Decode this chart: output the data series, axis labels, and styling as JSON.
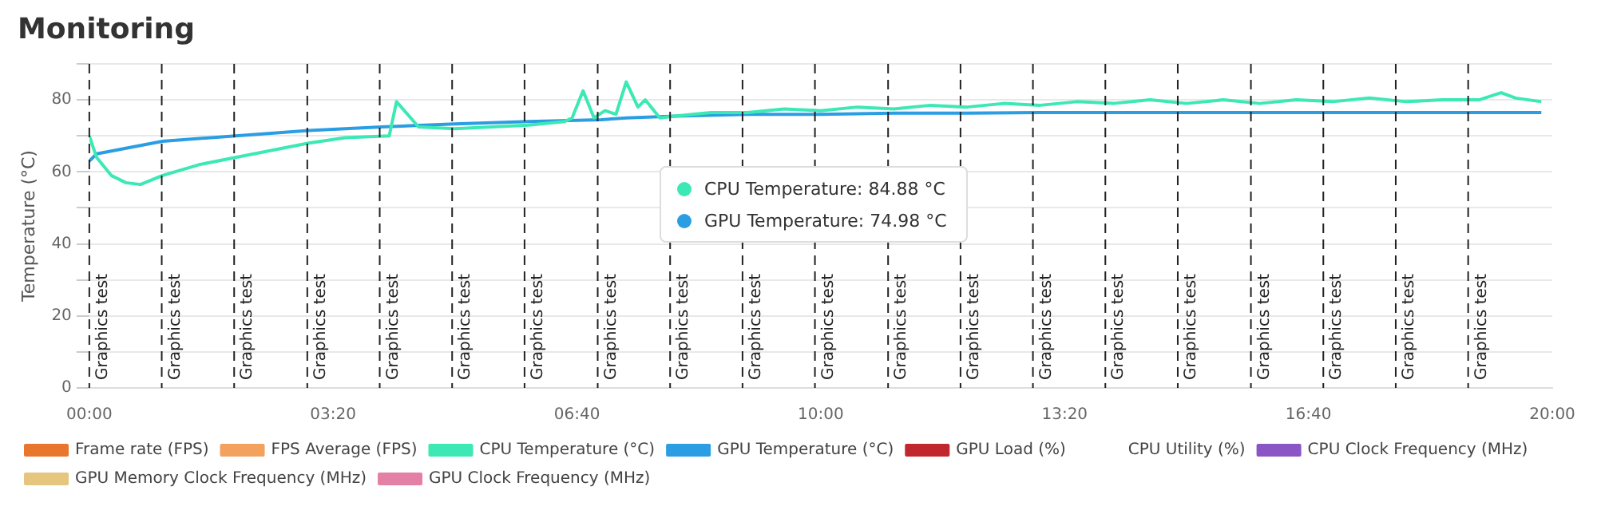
{
  "chart_data": {
    "type": "line",
    "title": "Monitoring",
    "ylabel": "Temperature (°C)",
    "legend": "bottom",
    "grid": "y",
    "marker": "none",
    "line_style": "solid",
    "xlim": [
      0,
      20
    ],
    "xticks": [
      {
        "value": 0,
        "label": "00:00"
      },
      {
        "value": 3.333,
        "label": "03:20"
      },
      {
        "value": 6.667,
        "label": "06:40"
      },
      {
        "value": 10,
        "label": "10:00"
      },
      {
        "value": 13.333,
        "label": "13:20"
      },
      {
        "value": 16.667,
        "label": "16:40"
      },
      {
        "value": 20,
        "label": "20:00"
      }
    ],
    "ylim": [
      0,
      90
    ],
    "yticks": [
      0,
      {
        "value": 10,
        "label": null
      },
      20,
      {
        "value": 30,
        "label": null
      },
      40,
      {
        "value": 50,
        "label": null
      },
      60,
      {
        "value": 70,
        "label": null
      },
      80,
      {
        "value": 90,
        "label": null
      }
    ],
    "series": [
      {
        "name": "Frame rate (FPS)",
        "color": "#e8762c"
      },
      {
        "name": "FPS Average (FPS)",
        "color": "#f2a15f"
      },
      {
        "name": "CPU Temperature (°C)",
        "color": "#3ce8b4",
        "x": [
          0,
          0.1,
          0.3,
          0.5,
          0.7,
          1,
          1.5,
          2,
          2.5,
          3,
          3.5,
          4.1,
          4.2,
          4.35,
          4.5,
          5,
          5.5,
          6,
          6.5,
          6.6,
          6.75,
          6.9,
          7.05,
          7.2,
          7.34,
          7.5,
          7.6,
          7.8,
          8,
          8.5,
          9,
          9.5,
          10,
          10.5,
          11,
          11.5,
          12,
          12.5,
          13,
          13.5,
          14,
          14.5,
          15,
          15.5,
          16,
          16.5,
          17,
          17.5,
          18,
          18.5,
          19,
          19.3,
          19.5,
          19.85
        ],
        "values": [
          70,
          64,
          59,
          57,
          56.5,
          59,
          62,
          64,
          66,
          68,
          69.5,
          70,
          79.5,
          76,
          72.5,
          72,
          72.5,
          73,
          74,
          75,
          82.5,
          75,
          77,
          76,
          85,
          78,
          80,
          75,
          75.5,
          76.5,
          76.5,
          77.5,
          77,
          78,
          77.5,
          78.5,
          78,
          79,
          78.5,
          79.5,
          79,
          80,
          79,
          80,
          79,
          80,
          79.5,
          80.5,
          79.5,
          80,
          80,
          82,
          80.5,
          79.5
        ]
      },
      {
        "name": "GPU Temperature (°C)",
        "color": "#2b9ee3",
        "x": [
          0,
          0.1,
          1,
          2,
          3,
          4,
          5,
          6,
          7,
          7.34,
          8,
          9,
          10,
          11,
          12,
          13,
          14,
          15,
          16,
          17,
          18,
          19,
          19.85
        ],
        "values": [
          63,
          65,
          68.5,
          70,
          71.5,
          72.5,
          73.3,
          74,
          74.5,
          75,
          75.5,
          76,
          76,
          76.3,
          76.3,
          76.5,
          76.5,
          76.5,
          76.5,
          76.5,
          76.5,
          76.5,
          76.5
        ]
      },
      {
        "name": "GPU Load (%)",
        "color": "#c0282d"
      },
      {
        "name": "CPU Utility (%)"
      },
      {
        "name": "CPU Clock Frequency (MHz)",
        "color": "#8a55c4"
      },
      {
        "name": "GPU Memory Clock Frequency (MHz)",
        "color": "#e6c57e"
      },
      {
        "name": "GPU Clock Frequency (MHz)",
        "color": "#e47fa6"
      }
    ],
    "ref_lines": [
      {
        "axis": "x",
        "value": 0,
        "label": "Graphics test",
        "color": "#222222",
        "line_style": "dashed"
      },
      {
        "axis": "x",
        "value": 0.99,
        "label": "Graphics test",
        "color": "#222222",
        "line_style": "dashed"
      },
      {
        "axis": "x",
        "value": 1.98,
        "label": "Graphics test",
        "color": "#222222",
        "line_style": "dashed"
      },
      {
        "axis": "x",
        "value": 2.98,
        "label": "Graphics test",
        "color": "#222222",
        "line_style": "dashed"
      },
      {
        "axis": "x",
        "value": 3.97,
        "label": "Graphics test",
        "color": "#222222",
        "line_style": "dashed"
      },
      {
        "axis": "x",
        "value": 4.96,
        "label": "Graphics test",
        "color": "#222222",
        "line_style": "dashed"
      },
      {
        "axis": "x",
        "value": 5.95,
        "label": "Graphics test",
        "color": "#222222",
        "line_style": "dashed"
      },
      {
        "axis": "x",
        "value": 6.95,
        "label": "Graphics test",
        "color": "#222222",
        "line_style": "dashed"
      },
      {
        "axis": "x",
        "value": 7.94,
        "label": "Graphics test",
        "color": "#222222",
        "line_style": "dashed"
      },
      {
        "axis": "x",
        "value": 8.93,
        "label": "Graphics test",
        "color": "#222222",
        "line_style": "dashed"
      },
      {
        "axis": "x",
        "value": 9.92,
        "label": "Graphics test",
        "color": "#222222",
        "line_style": "dashed"
      },
      {
        "axis": "x",
        "value": 10.92,
        "label": "Graphics test",
        "color": "#222222",
        "line_style": "dashed"
      },
      {
        "axis": "x",
        "value": 11.91,
        "label": "Graphics test",
        "color": "#222222",
        "line_style": "dashed"
      },
      {
        "axis": "x",
        "value": 12.9,
        "label": "Graphics test",
        "color": "#222222",
        "line_style": "dashed"
      },
      {
        "axis": "x",
        "value": 13.89,
        "label": "Graphics test",
        "color": "#222222",
        "line_style": "dashed"
      },
      {
        "axis": "x",
        "value": 14.88,
        "label": "Graphics test",
        "color": "#222222",
        "line_style": "dashed"
      },
      {
        "axis": "x",
        "value": 15.88,
        "label": "Graphics test",
        "color": "#222222",
        "line_style": "dashed"
      },
      {
        "axis": "x",
        "value": 16.87,
        "label": "Graphics test",
        "color": "#222222",
        "line_style": "dashed"
      },
      {
        "axis": "x",
        "value": 17.86,
        "label": "Graphics test",
        "color": "#222222",
        "line_style": "dashed"
      },
      {
        "axis": "x",
        "value": 18.85,
        "label": "Graphics test",
        "color": "#222222",
        "line_style": "dashed"
      }
    ],
    "annotations": [
      "CPU Temperature: 84.88 °C",
      "GPU Temperature: 74.98 °C"
    ]
  }
}
